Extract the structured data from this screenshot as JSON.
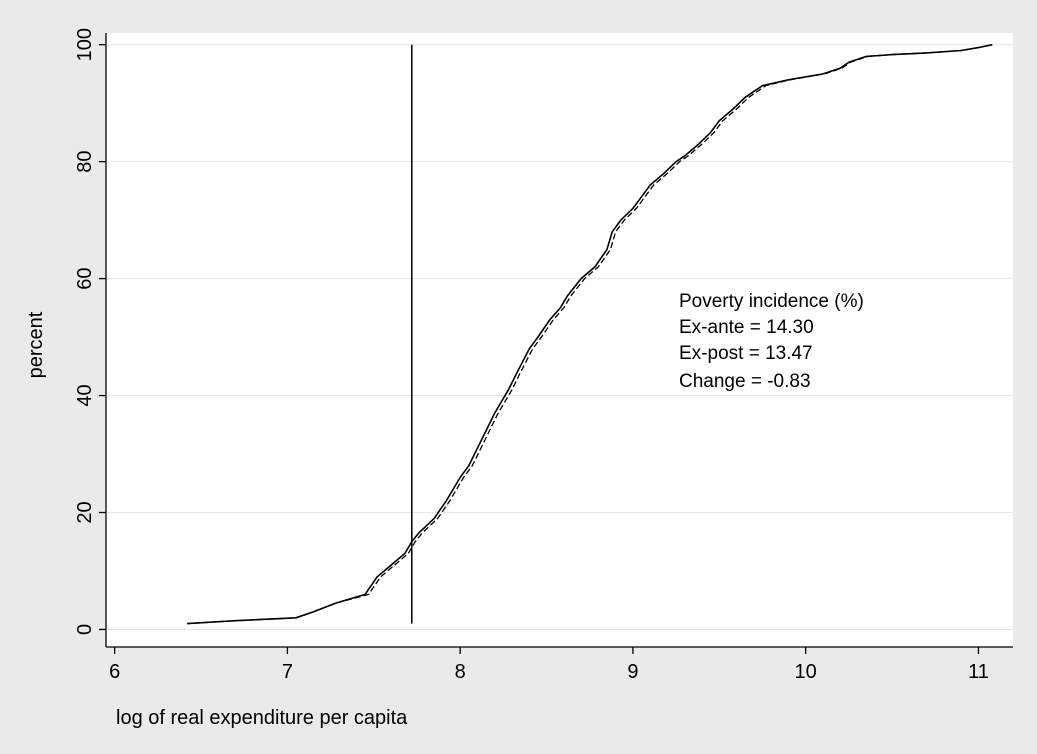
{
  "chart_data": {
    "type": "line",
    "xlabel": "log of real expenditure per capita",
    "ylabel": "percent",
    "xlim": [
      5.95,
      11.2
    ],
    "ylim": [
      -3,
      102
    ],
    "x_ticks": [
      6,
      7,
      8,
      9,
      10,
      11
    ],
    "y_ticks": [
      0,
      20,
      40,
      60,
      80,
      100
    ],
    "grid": "horizontal",
    "poverty_line_x": 7.72,
    "annotation": [
      "Poverty incidence (%)",
      "Ex-ante = 14.30",
      "Ex-post = 13.47",
      "Change = -0.83"
    ],
    "series": [
      {
        "style": "solid",
        "x": [
          6.42,
          6.7,
          7.05,
          7.15,
          7.28,
          7.45,
          7.52,
          7.6,
          7.68,
          7.72,
          7.76,
          7.85,
          7.92,
          8.0,
          8.05,
          8.1,
          8.15,
          8.2,
          8.28,
          8.33,
          8.4,
          8.45,
          8.52,
          8.58,
          8.62,
          8.7,
          8.78,
          8.85,
          8.88,
          8.93,
          9.0,
          9.05,
          9.1,
          9.18,
          9.25,
          9.3,
          9.38,
          9.45,
          9.5,
          9.58,
          9.65,
          9.75,
          9.9,
          10.1,
          10.2,
          10.25,
          10.35,
          10.5,
          10.7,
          10.9,
          11.0,
          11.08
        ],
        "y": [
          1,
          1.5,
          2,
          3,
          4.5,
          6,
          9,
          11,
          13,
          15,
          16.5,
          19,
          22,
          26,
          28,
          31,
          34,
          37,
          41,
          44,
          48,
          50,
          53,
          55,
          57,
          60,
          62,
          65,
          68,
          70,
          72,
          74,
          76,
          78,
          80,
          81,
          83,
          85,
          87,
          89,
          91,
          93,
          94,
          95,
          96,
          97,
          98,
          98.3,
          98.6,
          99,
          99.5,
          100
        ]
      },
      {
        "style": "dashed",
        "x": [
          6.42,
          6.7,
          7.05,
          7.15,
          7.28,
          7.47,
          7.54,
          7.62,
          7.7,
          7.74,
          7.78,
          7.87,
          7.94,
          8.02,
          8.07,
          8.12,
          8.17,
          8.22,
          8.3,
          8.35,
          8.42,
          8.47,
          8.54,
          8.6,
          8.64,
          8.72,
          8.8,
          8.87,
          8.9,
          8.95,
          9.02,
          9.07,
          9.12,
          9.2,
          9.27,
          9.32,
          9.4,
          9.47,
          9.52,
          9.6,
          9.67,
          9.77,
          9.91,
          10.11,
          10.21,
          10.26,
          10.36,
          10.5,
          10.7,
          10.9,
          11.0,
          11.08
        ],
        "y": [
          1,
          1.5,
          2,
          3,
          4.5,
          6,
          9,
          11,
          13,
          15,
          16.5,
          19,
          22,
          26,
          28,
          31,
          34,
          37,
          41,
          44,
          48,
          50,
          53,
          55,
          57,
          60,
          62,
          65,
          68,
          70,
          72,
          74,
          76,
          78,
          80,
          81,
          83,
          85,
          87,
          89,
          91,
          93,
          94,
          95,
          96,
          97,
          98,
          98.3,
          98.6,
          99,
          99.5,
          100
        ]
      }
    ]
  }
}
